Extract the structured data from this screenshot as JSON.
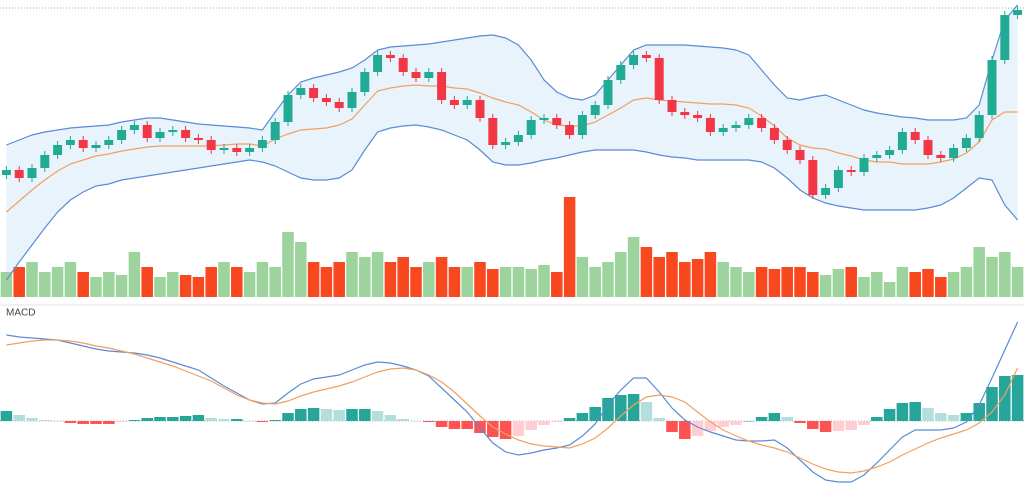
{
  "chart_data": [
    {
      "type": "candlestick",
      "open": [
        125,
        130,
        122,
        132,
        145,
        155,
        160,
        152,
        155,
        160,
        170,
        175,
        162,
        168,
        170,
        162,
        160,
        150,
        152,
        148,
        152,
        160,
        178,
        205,
        212,
        202,
        198,
        192,
        208,
        228,
        245,
        242,
        228,
        222,
        228,
        200,
        195,
        200,
        182,
        155,
        158,
        165,
        180,
        182,
        175,
        165,
        185,
        195,
        220,
        235,
        245,
        242,
        200,
        188,
        185,
        182,
        168,
        172,
        175,
        182,
        172,
        160,
        150,
        140,
        105,
        112,
        130,
        128,
        142,
        145,
        150,
        168,
        160,
        145,
        142,
        152,
        162,
        185,
        240,
        285
      ],
      "high": [
        134,
        134,
        136,
        149,
        159,
        164,
        164,
        159,
        164,
        174,
        179,
        179,
        172,
        174,
        174,
        166,
        164,
        156,
        156,
        156,
        164,
        182,
        209,
        216,
        216,
        206,
        202,
        212,
        232,
        249,
        249,
        246,
        232,
        232,
        232,
        204,
        204,
        204,
        186,
        162,
        169,
        184,
        186,
        186,
        179,
        189,
        199,
        224,
        239,
        249,
        249,
        246,
        204,
        192,
        189,
        186,
        176,
        179,
        186,
        186,
        176,
        164,
        154,
        144,
        116,
        134,
        134,
        146,
        149,
        154,
        172,
        172,
        164,
        149,
        156,
        166,
        189,
        244,
        289,
        294
      ],
      "low": [
        121,
        118,
        118,
        128,
        141,
        151,
        148,
        148,
        151,
        156,
        166,
        158,
        158,
        164,
        158,
        156,
        146,
        146,
        144,
        144,
        148,
        156,
        174,
        201,
        198,
        194,
        188,
        188,
        204,
        224,
        238,
        224,
        218,
        218,
        196,
        191,
        191,
        178,
        151,
        151,
        154,
        161,
        176,
        171,
        161,
        161,
        181,
        191,
        216,
        231,
        238,
        196,
        184,
        181,
        178,
        164,
        164,
        168,
        171,
        168,
        156,
        146,
        136,
        101,
        101,
        108,
        124,
        124,
        138,
        141,
        146,
        156,
        141,
        138,
        138,
        148,
        158,
        181,
        236,
        281
      ],
      "close": [
        130,
        122,
        132,
        145,
        155,
        160,
        152,
        155,
        160,
        170,
        175,
        162,
        168,
        170,
        162,
        160,
        150,
        152,
        148,
        152,
        160,
        178,
        205,
        212,
        202,
        198,
        192,
        208,
        228,
        245,
        242,
        228,
        222,
        228,
        200,
        195,
        200,
        182,
        155,
        158,
        165,
        180,
        182,
        175,
        165,
        185,
        195,
        220,
        235,
        245,
        242,
        200,
        188,
        185,
        182,
        168,
        172,
        175,
        182,
        172,
        160,
        150,
        140,
        105,
        112,
        130,
        128,
        142,
        145,
        150,
        168,
        160,
        145,
        142,
        152,
        162,
        185,
        240,
        285,
        290
      ],
      "bands": {
        "upper": [
          155,
          160,
          165,
          168,
          170,
          172,
          173,
          174,
          175,
          178,
          180,
          182,
          182,
          180,
          178,
          176,
          175,
          174,
          173,
          172,
          170,
          188,
          205,
          218,
          222,
          225,
          228,
          232,
          240,
          250,
          253,
          254,
          255,
          256,
          258,
          260,
          262,
          264,
          265,
          262,
          255,
          240,
          220,
          208,
          202,
          200,
          205,
          220,
          235,
          250,
          255,
          255,
          255,
          255,
          254,
          253,
          252,
          250,
          245,
          230,
          215,
          202,
          200,
          203,
          205,
          200,
          195,
          190,
          187,
          185,
          183,
          182,
          180,
          180,
          180,
          182,
          195,
          240,
          280,
          295
        ],
        "middle": [
          88,
          99,
          110,
          120,
          129,
          136,
          140,
          144,
          146,
          149,
          151,
          153,
          154,
          154,
          154,
          154,
          154,
          155,
          156,
          156,
          154,
          161,
          166,
          170,
          171,
          172,
          175,
          181,
          195,
          209,
          212,
          214,
          215,
          214,
          214,
          212,
          211,
          207,
          202,
          198,
          195,
          188,
          180,
          175,
          174,
          174,
          178,
          185,
          192,
          200,
          202,
          200,
          199,
          198,
          197,
          196,
          196,
          195,
          192,
          184,
          174,
          162,
          155,
          152,
          151,
          147,
          144,
          140,
          138,
          138,
          136,
          136,
          136,
          138,
          141,
          147,
          158,
          180,
          188,
          188
        ],
        "lower": [
          20,
          38,
          55,
          72,
          88,
          100,
          108,
          114,
          116,
          120,
          122,
          124,
          126,
          128,
          130,
          132,
          134,
          136,
          138,
          140,
          138,
          134,
          128,
          122,
          120,
          120,
          122,
          130,
          150,
          168,
          172,
          174,
          175,
          173,
          170,
          165,
          160,
          150,
          138,
          135,
          135,
          137,
          140,
          142,
          145,
          148,
          150,
          150,
          150,
          150,
          148,
          145,
          143,
          142,
          140,
          140,
          140,
          140,
          140,
          138,
          132,
          122,
          110,
          102,
          97,
          94,
          92,
          90,
          90,
          90,
          90,
          90,
          92,
          95,
          102,
          112,
          122,
          120,
          95,
          80
        ]
      },
      "volume": [
        25,
        30,
        35,
        25,
        30,
        35,
        25,
        20,
        25,
        22,
        45,
        30,
        20,
        25,
        22,
        20,
        30,
        35,
        30,
        25,
        35,
        30,
        65,
        55,
        35,
        30,
        35,
        45,
        40,
        45,
        35,
        40,
        30,
        35,
        40,
        30,
        30,
        35,
        28,
        30,
        30,
        28,
        32,
        25,
        100,
        40,
        30,
        35,
        45,
        60,
        50,
        40,
        45,
        35,
        38,
        45,
        35,
        30,
        25,
        30,
        28,
        30,
        30,
        25,
        22,
        28,
        30,
        20,
        25,
        15,
        30,
        25,
        28,
        20,
        25,
        30,
        50,
        40,
        45,
        30
      ],
      "ylim": [
        0,
        300
      ],
      "volume_ylim": [
        0,
        110
      ],
      "up_color": "#22ab94",
      "down_color": "#f23645",
      "volume_up_color": "#9dd49d",
      "volume_down_color": "#f7481f",
      "band_color": "#5b8bd6",
      "middle_color": "#f0a060",
      "band_fill": "#e9f3fb"
    },
    {
      "type": "macd",
      "title": "MACD",
      "macd": [
        8.6,
        8.4,
        8.3,
        8.2,
        8.1,
        7.8,
        7.5,
        7.2,
        7.0,
        6.9,
        6.8,
        6.6,
        6.3,
        5.9,
        5.5,
        5.1,
        4.3,
        3.5,
        2.8,
        2.1,
        1.7,
        1.8,
        2.8,
        3.7,
        4.2,
        4.4,
        4.6,
        5.1,
        5.6,
        5.9,
        5.8,
        5.5,
        5.1,
        4.5,
        3.3,
        2.1,
        0.9,
        -0.7,
        -2.2,
        -3.1,
        -3.4,
        -3.2,
        -2.9,
        -2.7,
        -2.4,
        -1.5,
        -0.3,
        1.6,
        3.1,
        4.3,
        4.3,
        2.9,
        1.3,
        0.1,
        -0.6,
        -1.1,
        -1.5,
        -1.9,
        -2.0,
        -2.0,
        -1.9,
        -2.7,
        -3.9,
        -5.1,
        -5.9,
        -6.1,
        -6.1,
        -5.4,
        -4.2,
        -2.9,
        -1.6,
        -0.9,
        -0.9,
        -0.9,
        -0.7,
        -0.1,
        1.6,
        4.3,
        7.1,
        9.9
      ],
      "signal": [
        7.6,
        7.8,
        8.0,
        8.1,
        8.1,
        8.0,
        7.8,
        7.5,
        7.3,
        7.0,
        6.7,
        6.3,
        5.9,
        5.5,
        5.0,
        4.5,
        4.0,
        3.3,
        2.6,
        2.1,
        1.8,
        1.7,
        2.0,
        2.5,
        2.9,
        3.2,
        3.5,
        3.9,
        4.4,
        4.9,
        5.2,
        5.3,
        5.1,
        4.6,
        3.9,
        2.9,
        1.7,
        0.5,
        -0.6,
        -1.3,
        -1.9,
        -2.3,
        -2.5,
        -2.6,
        -2.7,
        -2.3,
        -1.7,
        -0.7,
        0.5,
        1.6,
        2.4,
        2.6,
        2.4,
        1.9,
        0.9,
        -0.1,
        -0.9,
        -1.5,
        -2.0,
        -2.4,
        -2.7,
        -3.1,
        -3.7,
        -4.3,
        -4.8,
        -5.1,
        -5.2,
        -5.0,
        -4.6,
        -4.1,
        -3.4,
        -2.8,
        -2.2,
        -1.7,
        -1.3,
        -0.9,
        -0.2,
        0.9,
        2.6,
        5.3
      ],
      "histogram": [
        1.0,
        0.6,
        0.3,
        0.1,
        0.0,
        -0.2,
        -0.3,
        -0.3,
        -0.3,
        -0.1,
        0.1,
        0.3,
        0.4,
        0.4,
        0.5,
        0.6,
        0.3,
        0.2,
        0.2,
        0.0,
        -0.1,
        0.1,
        0.8,
        1.2,
        1.3,
        1.2,
        1.1,
        1.2,
        1.2,
        1.0,
        0.6,
        0.2,
        0.0,
        -0.1,
        -0.6,
        -0.8,
        -0.8,
        -1.2,
        -1.6,
        -1.8,
        -1.5,
        -0.9,
        -0.4,
        -0.1,
        0.3,
        0.8,
        1.4,
        2.3,
        2.6,
        2.7,
        1.9,
        0.3,
        -1.1,
        -1.8,
        -1.5,
        -1.0,
        -0.6,
        -0.4,
        0.0,
        0.4,
        0.8,
        0.4,
        -0.2,
        -0.8,
        -1.1,
        -1.0,
        -0.9,
        -0.4,
        0.4,
        1.2,
        1.8,
        1.9,
        1.3,
        0.8,
        0.6,
        0.8,
        1.8,
        3.4,
        4.5,
        4.6
      ],
      "ylim": [
        -7.5,
        10
      ],
      "macd_color": "#5b8bd6",
      "signal_color": "#f0a060",
      "hist_colors": [
        "#26a69a",
        "#b2dfdb",
        "#ff5252",
        "#ffcdd2"
      ]
    }
  ]
}
